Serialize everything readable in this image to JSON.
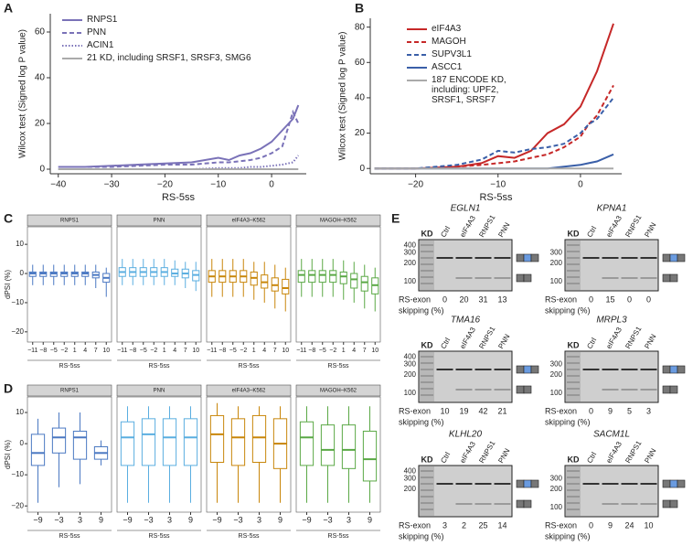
{
  "chart_data": [
    {
      "type": "line",
      "panel": "A",
      "xlabel": "RS-5ss",
      "ylabel": "Wilcox test (Signed log P value)",
      "xlim": [
        -41.5,
        6.5
      ],
      "xticks": [
        {
          "value": -40,
          "label": "−40"
        },
        {
          "value": -30,
          "label": "−30"
        },
        {
          "value": -20,
          "label": "−20"
        },
        {
          "value": -10,
          "label": "−10"
        },
        0
      ],
      "ylim": [
        -2,
        68
      ],
      "yticks": [
        0,
        20,
        40,
        60
      ],
      "legend": "upper left",
      "x": [
        -40,
        -35,
        -30,
        -25,
        -20,
        -15,
        -10,
        -8,
        -6,
        -4,
        -2,
        0,
        2,
        4,
        5
      ],
      "series": [
        {
          "name": "RNPS1",
          "color": "#7a72b8",
          "dash": "solid",
          "values": [
            1,
            1,
            1.5,
            2,
            2.5,
            3,
            5,
            4,
            6,
            7,
            9,
            12,
            17,
            22,
            28
          ]
        },
        {
          "name": "PNN",
          "color": "#7a72b8",
          "dash": "dashed",
          "values": [
            1,
            1,
            1,
            1.5,
            2,
            2,
            3,
            3,
            3.5,
            4,
            5,
            7,
            10,
            25,
            20
          ]
        },
        {
          "name": "ACIN1",
          "color": "#7a72b8",
          "dash": "dotted",
          "values": [
            0,
            0,
            0,
            0,
            0,
            0,
            0.5,
            0.5,
            0.5,
            1,
            1,
            1.5,
            2,
            3,
            6
          ]
        },
        {
          "name": "21 KD, including SRSF1, SRSF3, SMG6",
          "color": "#aaaaaa",
          "dash": "solid",
          "values": [
            0,
            0,
            0,
            0,
            0,
            0,
            0,
            0,
            0,
            0,
            0,
            0,
            0,
            0,
            0
          ]
        }
      ]
    },
    {
      "type": "line",
      "panel": "B",
      "xlabel": "RS-5ss",
      "ylabel": "Wilcox test (Signed log P value)",
      "xlim": [
        -25.5,
        5
      ],
      "xticks": [
        {
          "value": -20,
          "label": "−20"
        },
        {
          "value": -10,
          "label": "−10"
        },
        0
      ],
      "ylim": [
        -3,
        85
      ],
      "yticks": [
        0,
        20,
        40,
        60,
        80
      ],
      "legend": "upper left",
      "x": [
        -25,
        -20,
        -15,
        -12,
        -10,
        -8,
        -6,
        -4,
        -2,
        0,
        1,
        2,
        4
      ],
      "series": [
        {
          "name": "eIF4A3",
          "color": "#c62828",
          "dash": "solid",
          "values": [
            0,
            0,
            1,
            3,
            7,
            6,
            10,
            20,
            25,
            35,
            45,
            55,
            82
          ]
        },
        {
          "name": "MAGOH",
          "color": "#c62828",
          "dash": "dashed",
          "values": [
            0,
            0,
            1,
            2,
            3,
            4,
            6,
            8,
            12,
            18,
            25,
            30,
            47
          ]
        },
        {
          "name": "SUPV3L1",
          "color": "#3a5fa8",
          "dash": "dashed",
          "values": [
            0,
            0,
            2,
            5,
            10,
            9,
            11,
            12,
            14,
            20,
            25,
            28,
            40
          ]
        },
        {
          "name": "ASCC1",
          "color": "#3a5fa8",
          "dash": "solid",
          "values": [
            0,
            0,
            0,
            0,
            0,
            0,
            0,
            0,
            1,
            2,
            3,
            4,
            8
          ]
        },
        {
          "name": "187 ENCODE KD, including: UPF2, SRSF1, SRSF7",
          "color": "#aaaaaa",
          "dash": "solid",
          "values": [
            0,
            0,
            0,
            0,
            0,
            0,
            0,
            0,
            0,
            0,
            0,
            0,
            0
          ]
        }
      ]
    },
    {
      "type": "box",
      "panel": "C",
      "xlabel": "RS-5ss",
      "ylabel": "dPSI (%)",
      "categories": [
        "−11",
        "−8",
        "−5",
        "−2",
        "1",
        "4",
        "7",
        "10"
      ],
      "ylim": [
        -23.5,
        16
      ],
      "yticks": [
        {
          "value": -20,
          "label": "−20"
        },
        {
          "value": -10,
          "label": "−10"
        },
        0,
        10
      ],
      "facets": [
        {
          "title": "RNPS1",
          "color": "#4a78c2",
          "whislo": [
            -4,
            -4,
            -4,
            -4,
            -4,
            -4,
            -5,
            -8
          ],
          "q1": [
            -1,
            -1,
            -1,
            -1,
            -1,
            -1,
            -1.5,
            -3
          ],
          "med": [
            0,
            0,
            0,
            0,
            0,
            0,
            -0.5,
            -1.5
          ],
          "q3": [
            0.5,
            0.5,
            0.5,
            0.5,
            0.5,
            0.5,
            0.5,
            0
          ],
          "whishi": [
            3,
            3,
            3,
            3,
            3,
            3,
            3,
            2
          ]
        },
        {
          "title": "PNN",
          "color": "#5aaee0",
          "whislo": [
            -4,
            -4,
            -4,
            -4,
            -4,
            -4,
            -5,
            -6
          ],
          "q1": [
            -1,
            -1,
            -1,
            -1,
            -1,
            -1,
            -1.5,
            -2.5
          ],
          "med": [
            0.5,
            0.5,
            0.5,
            0.5,
            0.5,
            0,
            0,
            -0.5
          ],
          "q3": [
            2,
            2,
            2,
            2,
            2,
            1.5,
            1.5,
            1
          ],
          "whishi": [
            5,
            5,
            5,
            5,
            5,
            4.5,
            4,
            4
          ]
        },
        {
          "title": "eIF4A3–K562",
          "color": "#c8860a",
          "whislo": [
            -8,
            -8,
            -8,
            -8,
            -9,
            -10,
            -12,
            -13
          ],
          "q1": [
            -3,
            -3,
            -3,
            -3,
            -4,
            -5,
            -6,
            -7
          ],
          "med": [
            -1,
            -1,
            -1,
            -1,
            -1.5,
            -3,
            -4,
            -5
          ],
          "q3": [
            1,
            1,
            1,
            1,
            0.5,
            -0.5,
            -1.5,
            -2
          ],
          "whishi": [
            5,
            5,
            5,
            5,
            4,
            4,
            3,
            2
          ]
        },
        {
          "title": "MAGOH–K562",
          "color": "#5aa845",
          "whislo": [
            -8,
            -8,
            -8,
            -8,
            -9,
            -10,
            -12,
            -13
          ],
          "q1": [
            -3,
            -3,
            -3,
            -3,
            -3.5,
            -5,
            -6,
            -7
          ],
          "med": [
            -0.5,
            -0.5,
            -0.5,
            -0.5,
            -1,
            -2,
            -3,
            -4
          ],
          "q3": [
            1,
            1,
            1,
            1,
            0.5,
            0,
            -1,
            -1.5
          ],
          "whishi": [
            5,
            5,
            5,
            5,
            4.5,
            4,
            3,
            2
          ]
        }
      ]
    },
    {
      "type": "box",
      "panel": "D",
      "xlabel": "RS-5ss",
      "ylabel": "dPSI (%)",
      "categories": [
        "−9",
        "−3",
        "3",
        "9"
      ],
      "ylim": [
        -22,
        15
      ],
      "yticks": [
        {
          "value": -20,
          "label": "−20"
        },
        {
          "value": -10,
          "label": "−10"
        },
        0,
        10
      ],
      "facets": [
        {
          "title": "RNPS1",
          "color": "#4a78c2",
          "whislo": [
            -19,
            -14,
            -13,
            -7
          ],
          "q1": [
            -7,
            -3,
            -5,
            -5
          ],
          "med": [
            -3,
            2,
            2,
            -3
          ],
          "q3": [
            3,
            5,
            4,
            -1
          ],
          "whishi": [
            8,
            10,
            10,
            1
          ]
        },
        {
          "title": "PNN",
          "color": "#5aaee0",
          "whislo": [
            -19,
            -19,
            -19,
            -19
          ],
          "q1": [
            -7,
            -7,
            -7,
            -7
          ],
          "med": [
            2,
            3,
            2,
            2
          ],
          "q3": [
            7,
            8,
            8,
            8
          ],
          "whishi": [
            12,
            12,
            12,
            12
          ]
        },
        {
          "title": "eIF4A3–K562",
          "color": "#c8860a",
          "whislo": [
            -19,
            -19,
            -19,
            -19
          ],
          "q1": [
            -6,
            -7,
            -6,
            -8
          ],
          "med": [
            3,
            2,
            2,
            0
          ],
          "q3": [
            9,
            8,
            9,
            8
          ],
          "whishi": [
            13,
            12,
            12,
            12
          ]
        },
        {
          "title": "MAGOH–K562",
          "color": "#5aa845",
          "whislo": [
            -19,
            -19,
            -19,
            -19
          ],
          "q1": [
            -7,
            -7,
            -8,
            -12
          ],
          "med": [
            2,
            -2,
            -2,
            -5
          ],
          "q3": [
            7,
            6,
            6,
            4
          ],
          "whishi": [
            12,
            12,
            12,
            12
          ]
        }
      ]
    }
  ],
  "gel_panel": {
    "panel": "E",
    "kd_label": "KD",
    "lanes": [
      "Ctrl",
      "eIF4A3",
      "RNPS1",
      "PNN"
    ],
    "row_label": [
      "RS-exon",
      "skipping (%)"
    ],
    "gels": [
      {
        "gene": "EGLN1",
        "ladder": [
          400,
          300,
          200,
          100
        ],
        "skipping": [
          0,
          20,
          31,
          13
        ]
      },
      {
        "gene": "KPNA1",
        "ladder": [
          300,
          200,
          100
        ],
        "skipping": [
          0,
          15,
          0,
          0
        ]
      },
      {
        "gene": "TMA16",
        "ladder": [
          400,
          300,
          200,
          100
        ],
        "skipping": [
          10,
          19,
          42,
          21
        ]
      },
      {
        "gene": "MRPL3",
        "ladder": [
          300,
          200,
          100
        ],
        "skipping": [
          0,
          9,
          5,
          3
        ]
      },
      {
        "gene": "KLHL20",
        "ladder": [
          400,
          300,
          200
        ],
        "skipping": [
          3,
          2,
          25,
          14
        ]
      },
      {
        "gene": "SACM1L",
        "ladder": [
          300,
          200,
          100
        ],
        "skipping": [
          0,
          9,
          24,
          10
        ]
      }
    ]
  }
}
